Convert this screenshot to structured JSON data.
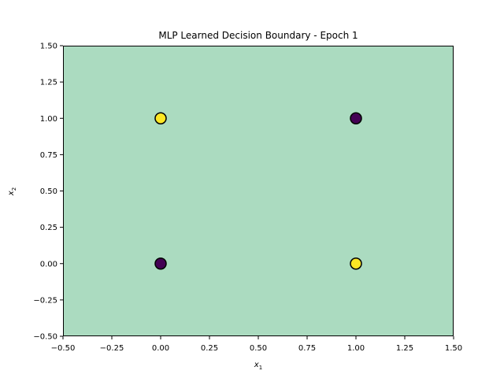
{
  "chart_data": {
    "type": "scatter",
    "title": "MLP Learned Decision Boundary - Epoch 1",
    "xlabel": {
      "base": "x",
      "sub": "1"
    },
    "ylabel": {
      "base": "x",
      "sub": "2"
    },
    "xlim": [
      -0.5,
      1.5
    ],
    "ylim": [
      -0.5,
      1.5
    ],
    "xticks": [
      -0.5,
      -0.25,
      0.0,
      0.25,
      0.5,
      0.75,
      1.0,
      1.25,
      1.5
    ],
    "yticks": [
      -0.5,
      -0.25,
      0.0,
      0.25,
      0.5,
      0.75,
      1.0,
      1.25,
      1.5
    ],
    "xtick_labels": [
      "−0.50",
      "−0.25",
      "0.00",
      "0.25",
      "0.50",
      "0.75",
      "1.00",
      "1.25",
      "1.50"
    ],
    "ytick_labels": [
      "−0.50",
      "−0.25",
      "0.00",
      "0.25",
      "0.50",
      "0.75",
      "1.00",
      "1.25",
      "1.50"
    ],
    "grid": false,
    "background_region": {
      "predicted_class": 1,
      "color": "#abdbc0"
    },
    "points": [
      {
        "x": 0,
        "y": 0,
        "class": 0
      },
      {
        "x": 0,
        "y": 1,
        "class": 1
      },
      {
        "x": 1,
        "y": 0,
        "class": 1
      },
      {
        "x": 1,
        "y": 1,
        "class": 0
      }
    ],
    "class_colors": {
      "0": "#440154",
      "1": "#fde725"
    },
    "point_edge_color": "#000000"
  }
}
